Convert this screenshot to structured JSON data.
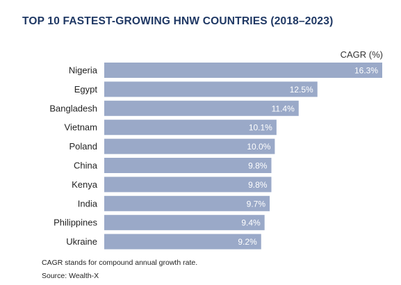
{
  "chart_data": {
    "type": "bar",
    "orientation": "horizontal",
    "title": "TOP 10 FASTEST-GROWING HNW COUNTRIES (2018–2023)",
    "value_label": "CAGR (%)",
    "categories": [
      "Nigeria",
      "Egypt",
      "Bangladesh",
      "Vietnam",
      "Poland",
      "China",
      "Kenya",
      "India",
      "Philippines",
      "Ukraine"
    ],
    "values": [
      16.3,
      12.5,
      11.4,
      10.1,
      10.0,
      9.8,
      9.8,
      9.7,
      9.4,
      9.2
    ],
    "value_labels": [
      "16.3%",
      "12.5%",
      "11.4%",
      "10.1%",
      "10.0%",
      "9.8%",
      "9.8%",
      "9.7%",
      "9.4%",
      "9.2%"
    ],
    "xlim": [
      0,
      16.3
    ],
    "grid": false,
    "bar_color": "#9aa9c8",
    "title_color": "#1f3864"
  },
  "footnote": "CAGR stands for compound annual growth rate.",
  "source": "Source: Wealth-X"
}
